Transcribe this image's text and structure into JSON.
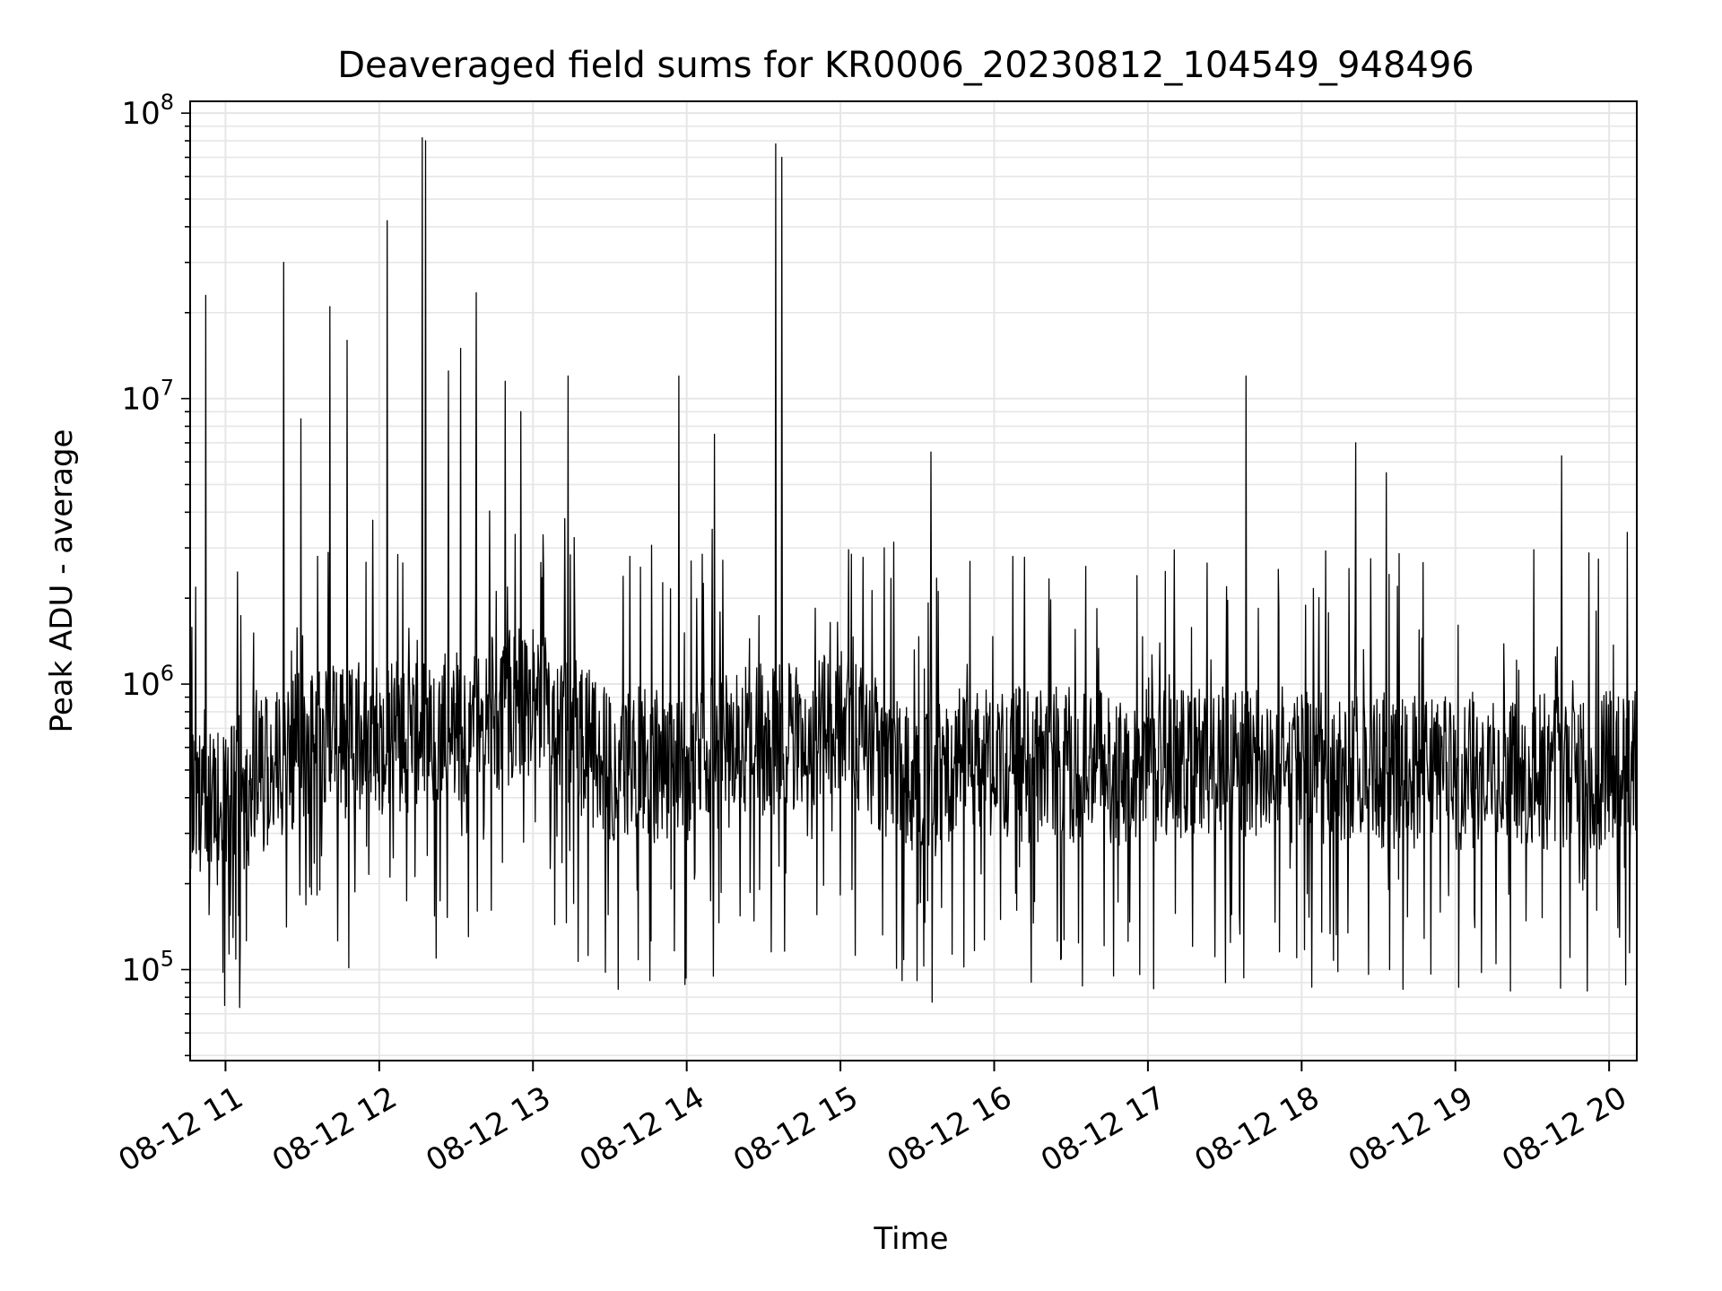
{
  "chart_data": {
    "type": "line",
    "title": "Deaveraged field sums for KR0006_20230812_104549_948496",
    "xlabel": "Time",
    "ylabel": "Peak ADU - average",
    "yscale": "log",
    "grid": true,
    "line_color": "#000000",
    "grid_color": "#e6e6e6",
    "x_tick_labels": [
      "08-12 11",
      "08-12 12",
      "08-12 13",
      "08-12 14",
      "08-12 15",
      "08-12 16",
      "08-12 17",
      "08-12 18",
      "08-12 19",
      "08-12 20"
    ],
    "x_tick_hours": [
      11,
      12,
      13,
      14,
      15,
      16,
      17,
      18,
      19,
      20
    ],
    "xlim_hours": [
      10.77,
      20.18
    ],
    "y_tick_labels": [
      {
        "value": 100000,
        "base": "10",
        "exp": "5"
      },
      {
        "value": 1000000,
        "base": "10",
        "exp": "6"
      },
      {
        "value": 10000000,
        "base": "10",
        "exp": "7"
      },
      {
        "value": 100000000,
        "base": "10",
        "exp": "8"
      }
    ],
    "ylim": [
      48000,
      110000000
    ],
    "baseline": {
      "hours": [
        10.77,
        11.0,
        11.5,
        12.0,
        12.5,
        13.0,
        13.5,
        14.0,
        14.5,
        15.0,
        15.5,
        16.0,
        16.5,
        17.0,
        17.5,
        18.0,
        18.5,
        19.0,
        19.5,
        19.85,
        20.18
      ],
      "values": [
        350000,
        380000,
        600000,
        650000,
        700000,
        900000,
        520000,
        520000,
        650000,
        700000,
        450000,
        520000,
        520000,
        500000,
        520000,
        520000,
        500000,
        480000,
        500000,
        480000,
        550000
      ]
    },
    "spikes": [
      {
        "hour": 10.87,
        "value": 23000000
      },
      {
        "hour": 11.38,
        "value": 30000000
      },
      {
        "hour": 11.49,
        "value": 8500000
      },
      {
        "hour": 11.68,
        "value": 21000000
      },
      {
        "hour": 11.79,
        "value": 16000000
      },
      {
        "hour": 12.05,
        "value": 42000000
      },
      {
        "hour": 12.28,
        "value": 82000000
      },
      {
        "hour": 12.3,
        "value": 80000000
      },
      {
        "hour": 12.45,
        "value": 12500000
      },
      {
        "hour": 12.53,
        "value": 15000000
      },
      {
        "hour": 12.63,
        "value": 23500000
      },
      {
        "hour": 12.82,
        "value": 11500000
      },
      {
        "hour": 12.92,
        "value": 9000000
      },
      {
        "hour": 13.23,
        "value": 12000000
      },
      {
        "hour": 13.95,
        "value": 12000000
      },
      {
        "hour": 14.18,
        "value": 7500000
      },
      {
        "hour": 14.58,
        "value": 78000000
      },
      {
        "hour": 14.62,
        "value": 70000000
      },
      {
        "hour": 15.59,
        "value": 6500000
      },
      {
        "hour": 16.12,
        "value": 2800000
      },
      {
        "hour": 17.64,
        "value": 12000000
      },
      {
        "hour": 18.35,
        "value": 7000000
      },
      {
        "hour": 18.55,
        "value": 5500000
      },
      {
        "hour": 19.69,
        "value": 6300000
      },
      {
        "hour": 20.12,
        "value": 3400000
      }
    ]
  }
}
